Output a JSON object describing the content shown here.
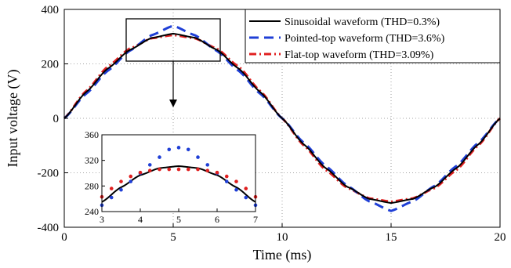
{
  "chart_data": {
    "type": "line",
    "xlabel": "Time (ms)",
    "ylabel": "Input voltage (V)",
    "xlim": [
      0,
      20
    ],
    "ylim": [
      -400,
      400
    ],
    "xticks": [
      "0",
      "5",
      "10",
      "15",
      "20"
    ],
    "yticks": [
      "-400",
      "-200",
      "0",
      "200",
      "400"
    ],
    "grid": "dotted",
    "legend_position": "top-right",
    "series": [
      {
        "name": "Sinusoidal waveform (THD=0.3%)",
        "color": "#000000",
        "style": "solid",
        "x": [
          0,
          1,
          2,
          3,
          4,
          5,
          6,
          7,
          8,
          9,
          10,
          11,
          12,
          13,
          14,
          15,
          16,
          17,
          18,
          19,
          20
        ],
        "y": [
          0,
          96,
          183,
          251,
          295,
          311,
          296,
          252,
          183,
          96,
          0,
          -96,
          -183,
          -252,
          -296,
          -311,
          -296,
          -252,
          -183,
          -96,
          0
        ]
      },
      {
        "name": "Pointed-top waveform (THD=3.6%)",
        "color": "#1f3fd6",
        "style": "dashed",
        "x": [
          0,
          1,
          2,
          3,
          4,
          5,
          6,
          7,
          8,
          9,
          10,
          11,
          12,
          13,
          14,
          15,
          16,
          17,
          18,
          19,
          20
        ],
        "y": [
          0,
          90,
          175,
          248,
          305,
          340,
          305,
          248,
          175,
          90,
          0,
          -90,
          -175,
          -248,
          -305,
          -340,
          -305,
          -248,
          -175,
          -90,
          0
        ]
      },
      {
        "name": "Flat-top waveform (THD=3.09%)",
        "color": "#e02020",
        "style": "dash-dot",
        "x": [
          0,
          1,
          2,
          3,
          4,
          5,
          6,
          7,
          8,
          9,
          10,
          11,
          12,
          13,
          14,
          15,
          16,
          17,
          18,
          19,
          20
        ],
        "y": [
          0,
          100,
          190,
          256,
          294,
          306,
          294,
          256,
          190,
          100,
          0,
          -100,
          -190,
          -256,
          -294,
          -306,
          -294,
          -256,
          -190,
          -100,
          0
        ]
      }
    ],
    "inset": {
      "xlim": [
        3,
        7
      ],
      "ylim": [
        240,
        360
      ],
      "xticks": [
        "3",
        "4",
        "5",
        "6",
        "7"
      ],
      "yticks": [
        "240",
        "280",
        "320",
        "360"
      ],
      "series": [
        {
          "name": "Sinusoidal waveform (THD=0.3%)",
          "style": "solid",
          "x": [
            3,
            3.5,
            4,
            4.5,
            5,
            5.5,
            6,
            6.5,
            7
          ],
          "y": [
            255,
            278,
            297,
            308,
            311,
            308,
            297,
            278,
            255
          ]
        },
        {
          "name": "Pointed-top waveform (THD=3.6%)",
          "style": "dotted",
          "x": [
            3,
            3.25,
            3.5,
            3.75,
            4,
            4.25,
            4.5,
            4.75,
            5,
            5.25,
            5.5,
            5.75,
            6,
            6.25,
            6.5,
            6.75,
            7
          ],
          "y": [
            250,
            262,
            274,
            287,
            300,
            313,
            325,
            337,
            340,
            337,
            325,
            313,
            300,
            287,
            274,
            262,
            250
          ]
        },
        {
          "name": "Flat-top waveform (THD=3.09%)",
          "style": "dotted",
          "x": [
            3,
            3.25,
            3.5,
            3.75,
            4,
            4.25,
            4.5,
            4.75,
            5,
            5.25,
            5.5,
            5.75,
            6,
            6.25,
            6.5,
            6.75,
            7
          ],
          "y": [
            263,
            276,
            287,
            295,
            301,
            304,
            306,
            306,
            306,
            306,
            306,
            304,
            301,
            295,
            287,
            276,
            263
          ]
        }
      ]
    }
  }
}
